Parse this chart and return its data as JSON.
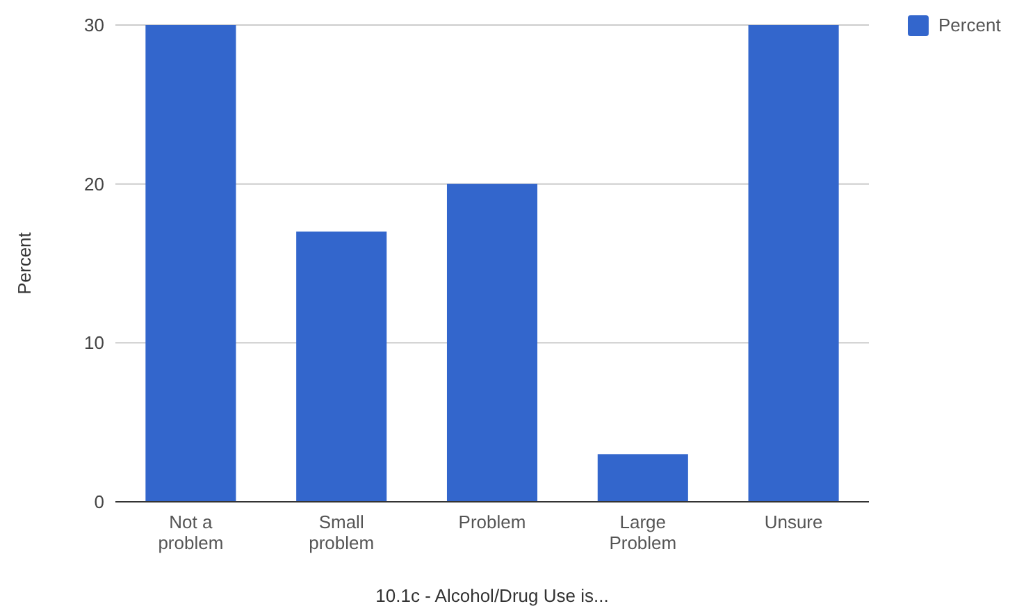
{
  "chart_data": {
    "type": "bar",
    "xlabel": "10.1c - Alcohol/Drug Use is...",
    "ylabel": "Percent",
    "categories": [
      "Not a problem",
      "Small problem",
      "Problem",
      "Large Problem",
      "Unsure"
    ],
    "series": [
      {
        "name": "Percent",
        "color": "#3366cc",
        "values": [
          30,
          17,
          20,
          3,
          30
        ]
      }
    ],
    "ylim": [
      0,
      30
    ],
    "yticks": [
      0,
      10,
      20,
      30
    ],
    "grid": "y",
    "legend": "top right"
  }
}
